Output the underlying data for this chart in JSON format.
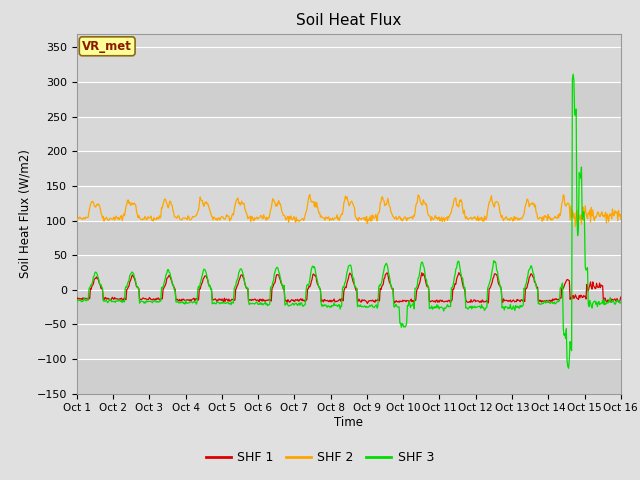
{
  "title": "Soil Heat Flux",
  "ylabel": "Soil Heat Flux (W/m2)",
  "xlabel": "Time",
  "xlim_days": 15,
  "ylim": [
    -150,
    370
  ],
  "yticks": [
    -150,
    -100,
    -50,
    0,
    50,
    100,
    150,
    200,
    250,
    300,
    350
  ],
  "xtick_labels": [
    "Oct 1",
    "Oct 2",
    "Oct 3",
    "Oct 4",
    "Oct 5",
    "Oct 6",
    "Oct 7",
    "Oct 8",
    "Oct 9",
    "Oct 10",
    "Oct 11",
    "Oct 12",
    "Oct 13",
    "Oct 14",
    "Oct 15",
    "Oct 16"
  ],
  "figsize": [
    6.4,
    4.8
  ],
  "dpi": 100,
  "background_color": "#e0e0e0",
  "plot_bg_color": "#d8d8d8",
  "grid_color": "#ffffff",
  "shf1_color": "#dd0000",
  "shf2_color": "#ffa500",
  "shf3_color": "#00dd00",
  "legend_entries": [
    "SHF 1",
    "SHF 2",
    "SHF 3"
  ],
  "annotation_text": "VR_met",
  "annotation_bg": "#ffff99",
  "annotation_border": "#8b6914"
}
